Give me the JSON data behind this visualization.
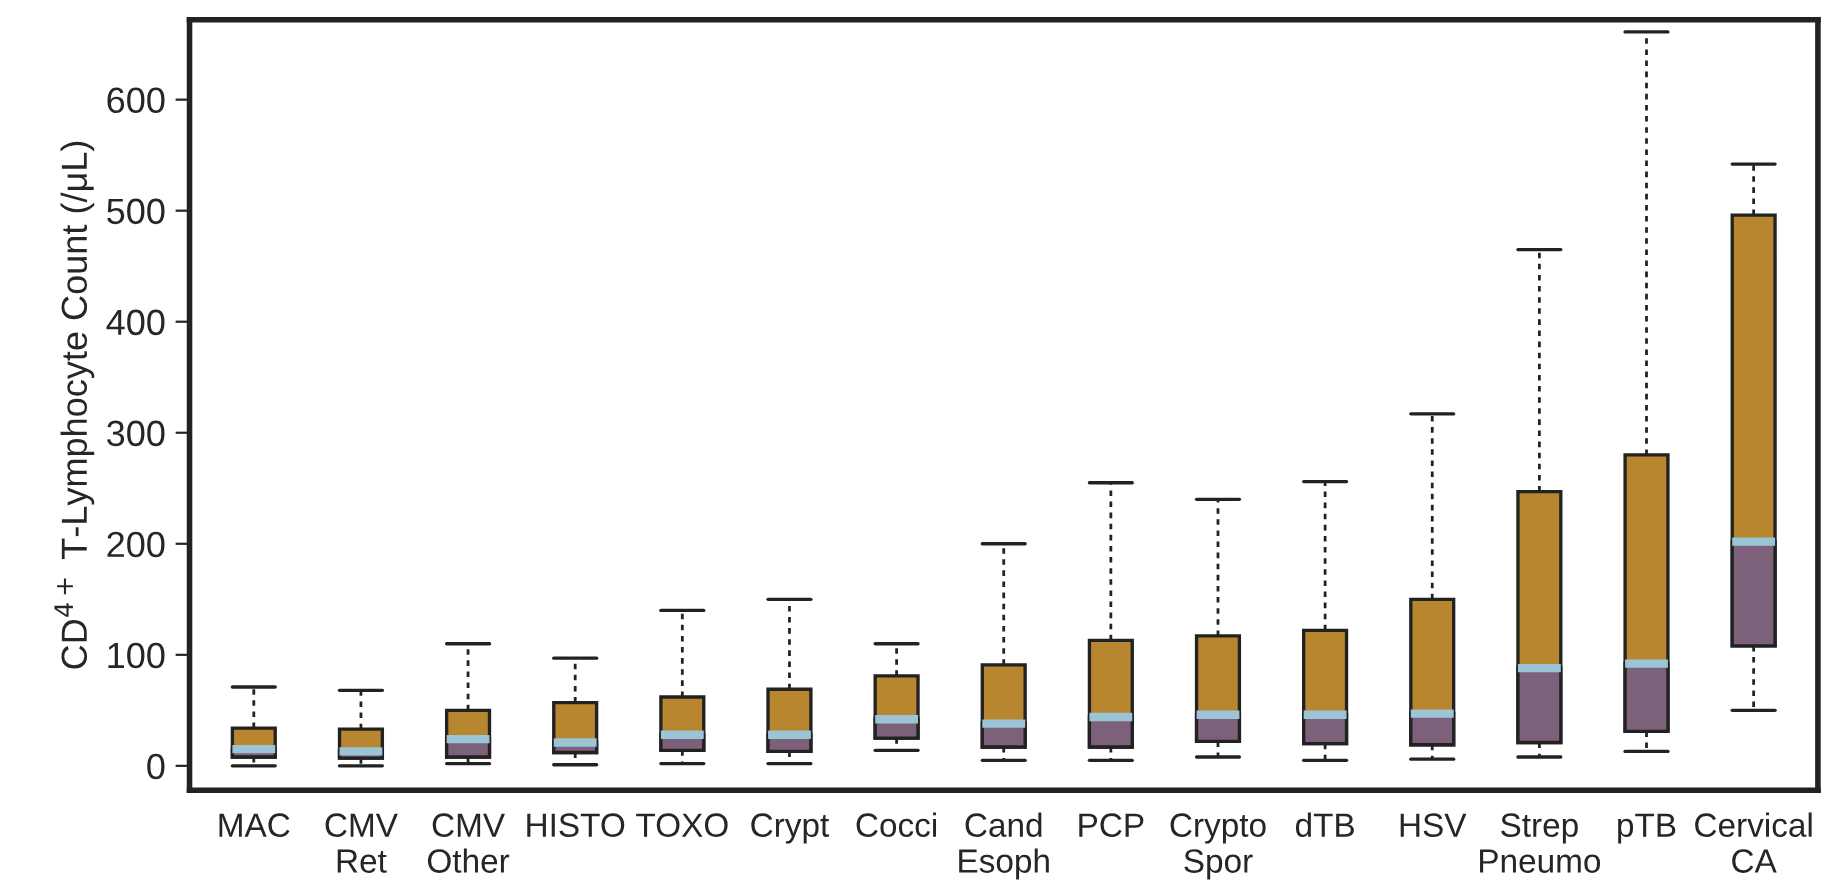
{
  "chart_data": {
    "type": "box",
    "ylabel": "CD$^{4+}$ T-Lymphocyte Count (/μL)",
    "categories": [
      "MAC",
      "CMV\nRet",
      "CMV\nOther",
      "HISTO",
      "TOXO",
      "Crypt",
      "Cocci",
      "Cand\nEsoph",
      "PCP",
      "Crypto\nSpor",
      "dTB",
      "HSV",
      "Strep\nPneumo",
      "pTB",
      "Cervical\nCA"
    ],
    "series": [
      {
        "color": "#b8862f",
        "colors": [
          "#7d607a",
          "#7d607a",
          "#7d607a",
          "#7d607a",
          "#7d607a",
          "#7d607a",
          "#7d607a",
          "#7d607a",
          "#7d607a",
          "#7d607a",
          "#7d607a",
          "#7d607a",
          "#7d607a",
          "#7d607a",
          "#7d607a"
        ],
        "boxes": [
          {
            "low": 0,
            "q1": 8,
            "median": 15,
            "q3": 34,
            "high": 71
          },
          {
            "low": 0,
            "q1": 7,
            "median": 13,
            "q3": 33,
            "high": 68
          },
          {
            "low": 2,
            "q1": 8,
            "median": 24,
            "q3": 50,
            "high": 110
          },
          {
            "low": 1,
            "q1": 12,
            "median": 21,
            "q3": 57,
            "high": 97
          },
          {
            "low": 2,
            "q1": 14,
            "median": 28,
            "q3": 62,
            "high": 140
          },
          {
            "low": 2,
            "q1": 13,
            "median": 28,
            "q3": 69,
            "high": 150
          },
          {
            "low": 14,
            "q1": 25,
            "median": 42,
            "q3": 81,
            "high": 110
          },
          {
            "low": 5,
            "q1": 17,
            "median": 38,
            "q3": 91,
            "high": 200
          },
          {
            "low": 5,
            "q1": 17,
            "median": 44,
            "q3": 113,
            "high": 255
          },
          {
            "low": 8,
            "q1": 22,
            "median": 46,
            "q3": 117,
            "high": 240
          },
          {
            "low": 5,
            "q1": 20,
            "median": 46,
            "q3": 122,
            "high": 256
          },
          {
            "low": 6,
            "q1": 19,
            "median": 47,
            "q3": 150,
            "high": 317
          },
          {
            "low": 8,
            "q1": 21,
            "median": 88,
            "q3": 247,
            "high": 465
          },
          {
            "low": 13,
            "q1": 31,
            "median": 92,
            "q3": 280,
            "high": 661
          },
          {
            "low": 50,
            "q1": 108,
            "median": 202,
            "q3": 496,
            "high": 542
          }
        ]
      }
    ],
    "ylim": [
      -22,
      672
    ],
    "yticks": [
      0,
      100,
      200,
      300,
      400,
      500,
      600
    ],
    "grid": false,
    "legend": false
  }
}
